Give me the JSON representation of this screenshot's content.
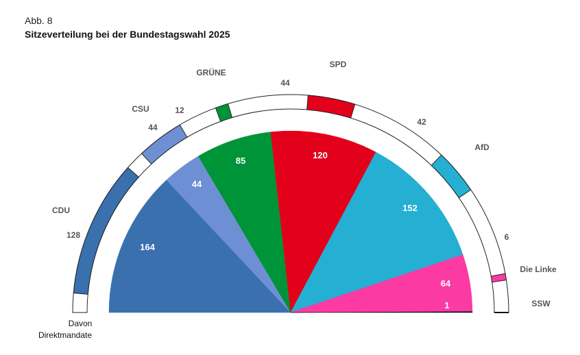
{
  "figure_label": "Abb. 8",
  "title": "Sitzeverteilung bei der Bundestagswahl 2025",
  "chart_data": {
    "type": "pie",
    "subtype": "parliament-semicircle",
    "title": "Sitzeverteilung bei der Bundestagswahl 2025",
    "inner_ring_label": "Davon Direktmandate",
    "legend_placement": "labels around arc",
    "parties": [
      {
        "name": "CDU",
        "seats": 164,
        "direct_mandates": 128,
        "color": "#3a70ae"
      },
      {
        "name": "CSU",
        "seats": 44,
        "direct_mandates": 44,
        "color": "#6f8fd4"
      },
      {
        "name": "GRÜNE",
        "seats": 85,
        "direct_mandates": 12,
        "color": "#009438"
      },
      {
        "name": "SPD",
        "seats": 120,
        "direct_mandates": 44,
        "color": "#e2001a"
      },
      {
        "name": "AfD",
        "seats": 152,
        "direct_mandates": 42,
        "color": "#25afd2"
      },
      {
        "name": "Die Linke",
        "seats": 64,
        "direct_mandates": 6,
        "color": "#fc3aa4"
      },
      {
        "name": "SSW",
        "seats": 1,
        "direct_mandates": 0,
        "color": "#111111"
      }
    ]
  }
}
